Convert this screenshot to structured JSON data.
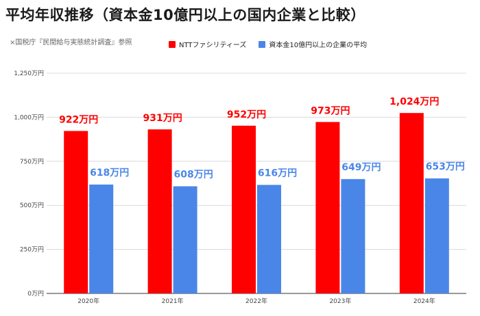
{
  "header": {
    "title": "平均年収推移（資本金10億円以上の国内企業と比較）",
    "source": "×国税庁『民間給与実態統計調査』参照"
  },
  "colors": {
    "series_a": "#ff0000",
    "series_b": "#4a86e8",
    "grid": "#d9d9d9",
    "axis": "#333333"
  },
  "chart_data": {
    "type": "bar",
    "title": "平均年収推移（資本金10億円以上の国内企業と比較）",
    "categories": [
      "2020年",
      "2021年",
      "2022年",
      "2023年",
      "2024年"
    ],
    "series": [
      {
        "name": "NTTファシリティーズ",
        "values": [
          922,
          931,
          952,
          973,
          1024
        ],
        "labels": [
          "922万円",
          "931万円",
          "952万円",
          "973万円",
          "1,024万円"
        ]
      },
      {
        "name": "資本金10億円以上の企業の平均",
        "values": [
          618,
          608,
          616,
          649,
          653
        ],
        "labels": [
          "618万円",
          "608万円",
          "616万円",
          "649万円",
          "653万円"
        ]
      }
    ],
    "yticks": [
      "0万円",
      "250万円",
      "500万円",
      "750万円",
      "1,000万円",
      "1,250万円"
    ],
    "ylim": [
      0,
      1250
    ],
    "grid": true,
    "legend_position": "top"
  }
}
